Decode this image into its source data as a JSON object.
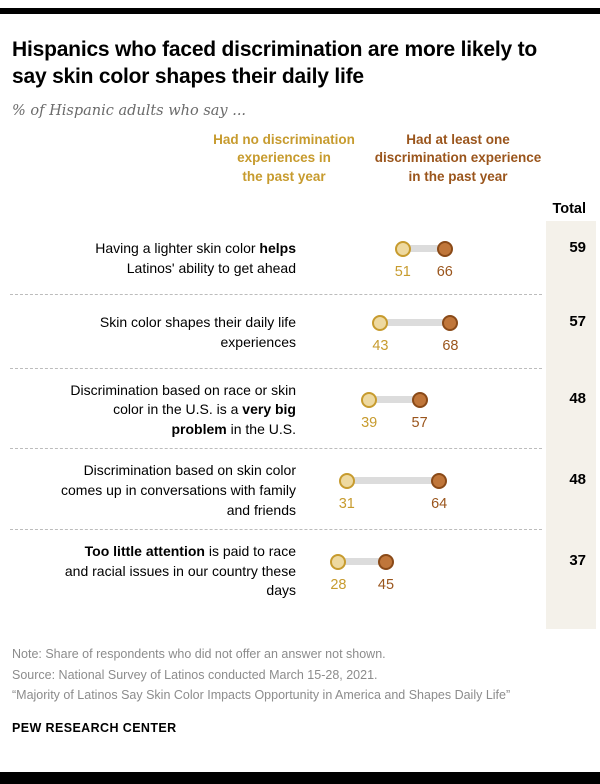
{
  "header": {
    "title": "Hispanics who faced discrimination are more likely to say skin color shapes their daily life",
    "subtitle": "% of Hispanic adults who say ...",
    "total_label": "Total"
  },
  "legend": {
    "no_discrimination": {
      "label": "Had no discrimination experiences in the past year",
      "lines": [
        "Had no discrimination",
        "experiences in",
        "the past year"
      ],
      "color": "#c79b2e"
    },
    "discrimination": {
      "label": "Had at least one discrimination experience in the past year",
      "lines": [
        "Had at least one",
        "discrimination experience",
        "in the past year"
      ],
      "color": "#9a551c"
    }
  },
  "chart_data": {
    "type": "dumbbell",
    "x_range": [
      0,
      100
    ],
    "categories": [
      "Having a lighter skin color helps Latinos' ability to get ahead",
      "Skin color shapes their daily life experiences",
      "Discrimination based on race or skin color in the U.S. is a very big problem in the U.S.",
      "Discrimination based on skin color comes up in conversations with family and friends",
      "Too little attention is paid to race and racial issues in our country these days"
    ],
    "series": [
      {
        "name": "Had no discrimination experiences in the past year",
        "color": "#c79b2e",
        "values": [
          51,
          43,
          39,
          31,
          28
        ]
      },
      {
        "name": "Had at least one discrimination experience in the past year",
        "color": "#9a551c",
        "values": [
          66,
          68,
          57,
          64,
          45
        ]
      }
    ],
    "totals": [
      59,
      57,
      48,
      48,
      37
    ],
    "legend_position": "top",
    "grid": false
  },
  "rows": [
    {
      "label_segments": [
        {
          "text": "Having a lighter skin color ",
          "bold": false
        },
        {
          "text": "helps",
          "bold": true
        },
        {
          "text": " Latinos' ability to get ahead",
          "bold": false
        }
      ],
      "no_discrimination": 51,
      "discrimination": 66,
      "total": 59
    },
    {
      "label_segments": [
        {
          "text": "Skin color shapes their daily life experiences",
          "bold": false
        }
      ],
      "no_discrimination": 43,
      "discrimination": 68,
      "total": 57
    },
    {
      "label_segments": [
        {
          "text": "Discrimination based on race or skin color in the U.S. is a ",
          "bold": false
        },
        {
          "text": "very big problem",
          "bold": true
        },
        {
          "text": " in the U.S.",
          "bold": false
        }
      ],
      "no_discrimination": 39,
      "discrimination": 57,
      "total": 48
    },
    {
      "label_segments": [
        {
          "text": "Discrimination based on skin color comes up in conversations with family and friends",
          "bold": false
        }
      ],
      "no_discrimination": 31,
      "discrimination": 64,
      "total": 48
    },
    {
      "label_segments": [
        {
          "text": "Too little attention",
          "bold": true
        },
        {
          "text": " is paid to race and racial issues in our country these days",
          "bold": false
        }
      ],
      "no_discrimination": 28,
      "discrimination": 45,
      "total": 37
    }
  ],
  "footer": {
    "note": "Note: Share of respondents who did not offer an answer not shown.",
    "source": "Source: National Survey of Latinos conducted March 15-28, 2021.",
    "report": "“Majority of Latinos Say Skin Color Impacts Opportunity in America and Shapes Daily Life”",
    "brand": "PEW RESEARCH CENTER"
  },
  "colors": {
    "gold": "#c79b2e",
    "gold_fill": "#eed9a0",
    "brown": "#9a551c",
    "brown_fill": "#c0763a",
    "connector": "#dcdcdc",
    "total_band": "#f4f1ea",
    "separator": "#bcbcbc",
    "notes_text": "#8c8c8c"
  }
}
